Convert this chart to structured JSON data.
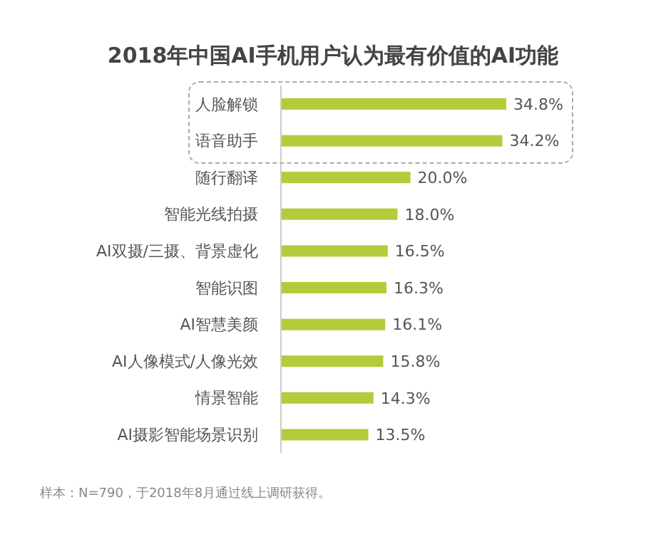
{
  "chart_data": {
    "type": "bar",
    "orientation": "horizontal",
    "title": "2018年中国AI手机用户认为最有价值的AI功能",
    "categories": [
      "人脸解锁",
      "语音助手",
      "随行翻译",
      "智能光线拍摄",
      "AI双摄/三摄、背景虚化",
      "智能识图",
      "AI智慧美颜",
      "AI人像模式/人像光效",
      "情景智能",
      "AI摄影智能场景识别"
    ],
    "values": [
      34.8,
      34.2,
      20.0,
      18.0,
      16.5,
      16.3,
      16.1,
      15.8,
      14.3,
      13.5
    ],
    "value_labels": [
      "34.8%",
      "34.2%",
      "20.0%",
      "18.0%",
      "16.5%",
      "16.3%",
      "16.1%",
      "15.8%",
      "14.3%",
      "13.5%"
    ],
    "color": "#b3cc3c",
    "annotations": [
      "样本：N=790，于2018年8月通过线上调研获得。"
    ]
  }
}
